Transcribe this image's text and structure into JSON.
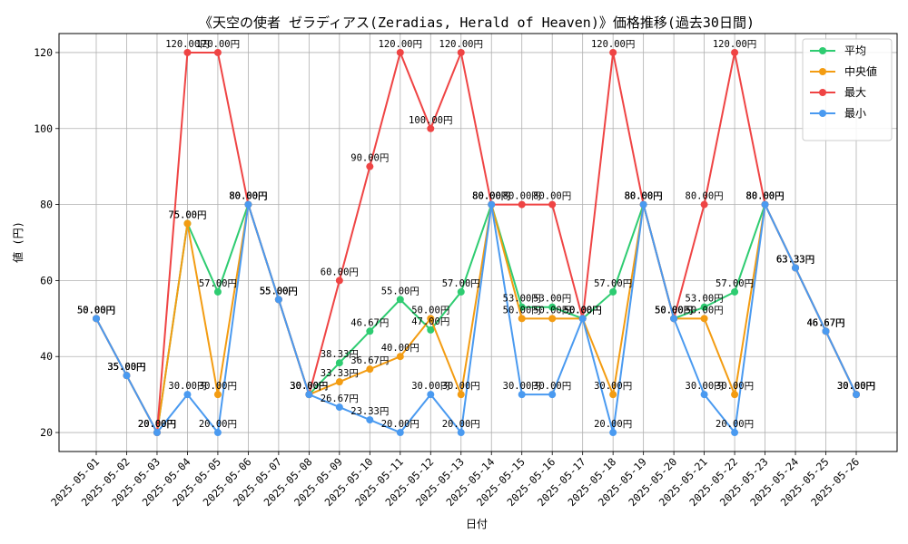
{
  "chart_data": {
    "type": "line",
    "title": "《天空の使者 ゼラディアス(Zeradias, Herald of Heaven)》価格推移(過去30日間)",
    "xlabel": "日付",
    "ylabel": "値 (円)",
    "ylim": [
      15,
      125
    ],
    "yticks": [
      20,
      40,
      60,
      80,
      100,
      120
    ],
    "grid": true,
    "legend_position": "top-right",
    "value_suffix": "円",
    "categories": [
      "2025-05-01",
      "2025-05-02",
      "2025-05-03",
      "2025-05-04",
      "2025-05-05",
      "2025-05-06",
      "2025-05-07",
      "2025-05-08",
      "2025-05-09",
      "2025-05-10",
      "2025-05-11",
      "2025-05-12",
      "2025-05-13",
      "2025-05-14",
      "2025-05-15",
      "2025-05-16",
      "2025-05-17",
      "2025-05-18",
      "2025-05-19",
      "2025-05-20",
      "2025-05-21",
      "2025-05-22",
      "2025-05-23",
      "2025-05-24",
      "2025-05-25",
      "2025-05-26"
    ],
    "series": [
      {
        "name": "平均",
        "color": "#2ecc71",
        "values": [
          50,
          35,
          20,
          75,
          57,
          80,
          55,
          30,
          38.33,
          46.67,
          55,
          47,
          57,
          80,
          53,
          53,
          50,
          57,
          80,
          50,
          53,
          57,
          80,
          63.33,
          46.67,
          30
        ]
      },
      {
        "name": "中央値",
        "color": "#f39c12",
        "values": [
          50,
          35,
          20,
          75,
          30,
          80,
          55,
          30,
          33.33,
          36.67,
          40,
          50,
          30,
          80,
          50,
          50,
          50,
          30,
          80,
          50,
          50,
          30,
          80,
          63.33,
          46.67,
          30
        ]
      },
      {
        "name": "最大",
        "color": "#ef4444",
        "values": [
          50,
          35,
          20,
          120,
          120,
          80,
          55,
          30,
          60,
          90,
          120,
          100,
          120,
          80,
          80,
          80,
          50,
          120,
          80,
          50,
          80,
          120,
          80,
          63.33,
          46.67,
          30
        ]
      },
      {
        "name": "最小",
        "color": "#4a9af0",
        "values": [
          50,
          35,
          20,
          30,
          20,
          80,
          55,
          30,
          26.67,
          23.33,
          20,
          30,
          20,
          80,
          30,
          30,
          50,
          20,
          80,
          50,
          30,
          20,
          80,
          63.33,
          46.67,
          30
        ]
      }
    ]
  }
}
